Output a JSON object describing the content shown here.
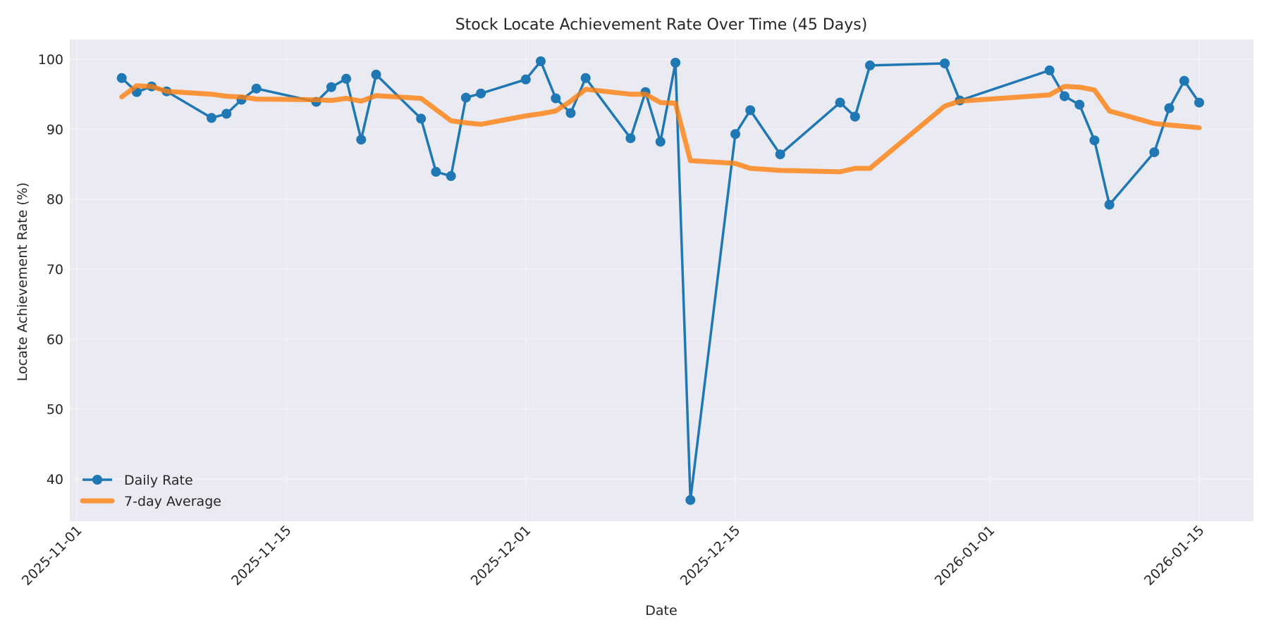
{
  "chart_data": {
    "type": "line",
    "title": "Stock Locate Achievement Rate Over Time (45 Days)",
    "xlabel": "Date",
    "ylabel": "Locate Achievement Rate (%)",
    "ylim": [
      34,
      103
    ],
    "yticks": [
      40,
      50,
      60,
      70,
      80,
      90,
      100
    ],
    "xticks": [
      "2025-11-01",
      "2025-11-15",
      "2025-12-01",
      "2025-12-15",
      "2026-01-01",
      "2026-01-15"
    ],
    "xlim": [
      "2025-10-31",
      "2026-01-18"
    ],
    "grid": true,
    "legend_position": "lower left",
    "colors": {
      "daily": "#1f77b4",
      "average": "#ff7f0e",
      "plot_bg": "#eaeaf2",
      "grid": "#f5f5f8"
    },
    "x": [
      "2025-11-04",
      "2025-11-05",
      "2025-11-06",
      "2025-11-07",
      "2025-11-10",
      "2025-11-11",
      "2025-11-12",
      "2025-11-13",
      "2025-11-17",
      "2025-11-18",
      "2025-11-19",
      "2025-11-20",
      "2025-11-21",
      "2025-11-24",
      "2025-11-25",
      "2025-11-26",
      "2025-11-27",
      "2025-11-28",
      "2025-12-01",
      "2025-12-02",
      "2025-12-03",
      "2025-12-04",
      "2025-12-05",
      "2025-12-08",
      "2025-12-09",
      "2025-12-10",
      "2025-12-11",
      "2025-12-12",
      "2025-12-15",
      "2025-12-16",
      "2025-12-18",
      "2025-12-22",
      "2025-12-23",
      "2025-12-24",
      "2025-12-29",
      "2025-12-30",
      "2026-01-05",
      "2026-01-06",
      "2026-01-07",
      "2026-01-08",
      "2026-01-09",
      "2026-01-12",
      "2026-01-13",
      "2026-01-14",
      "2026-01-15"
    ],
    "series": [
      {
        "name": "Daily Rate",
        "style": "line-with-markers",
        "values": [
          97.3,
          95.3,
          96.1,
          95.4,
          91.6,
          92.2,
          94.2,
          95.8,
          93.9,
          96.0,
          97.2,
          88.5,
          97.8,
          91.5,
          83.9,
          83.3,
          94.5,
          95.1,
          97.1,
          99.7,
          94.4,
          92.3,
          97.3,
          88.7,
          95.3,
          88.2,
          99.5,
          37.0,
          89.3,
          92.7,
          86.4,
          93.8,
          91.8,
          99.1,
          99.4,
          94.1,
          98.4,
          94.7,
          93.5,
          88.4,
          79.2,
          86.7,
          93.0,
          96.9,
          93.8
        ]
      },
      {
        "name": "7-day Average",
        "style": "thick-line",
        "values": [
          94.6,
          96.2,
          96.1,
          95.4,
          95.0,
          94.7,
          94.6,
          94.3,
          94.2,
          94.1,
          94.4,
          94.0,
          94.8,
          94.4,
          92.8,
          91.2,
          90.9,
          90.7,
          91.9,
          92.2,
          92.6,
          94.0,
          95.7,
          95.0,
          95.0,
          93.8,
          93.7,
          85.5,
          85.1,
          84.4,
          84.1,
          83.9,
          84.4,
          84.4,
          93.3,
          94.0,
          94.9,
          96.1,
          96.0,
          95.6,
          92.6,
          90.8,
          90.6,
          90.4,
          90.2
        ]
      }
    ]
  },
  "legend": {
    "items": [
      {
        "label": "Daily Rate",
        "color": "#1f77b4"
      },
      {
        "label": "7-day Average",
        "color": "#ff7f0e"
      }
    ]
  }
}
